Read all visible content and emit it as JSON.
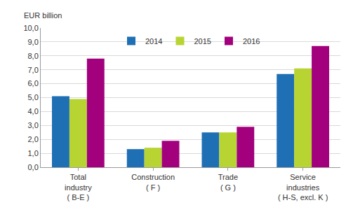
{
  "chart_data": {
    "type": "bar",
    "y_label": "EUR billion",
    "categories": [
      "Total\nindustry\n( B-E )",
      "Construction\n( F )",
      "Trade\n( G )",
      "Service\nindustries\n( H-S, excl. K )"
    ],
    "series": [
      {
        "name": "2014",
        "color": "#1f6fb4",
        "values": [
          5.1,
          1.3,
          2.5,
          6.7
        ]
      },
      {
        "name": "2015",
        "color": "#b8d432",
        "values": [
          4.9,
          1.4,
          2.5,
          7.1
        ]
      },
      {
        "name": "2016",
        "color": "#a3007d",
        "values": [
          7.8,
          1.9,
          2.9,
          8.7
        ]
      }
    ],
    "ylim": [
      0,
      10
    ],
    "yticks": [
      {
        "value": 0,
        "label": "0,0"
      },
      {
        "value": 1,
        "label": "1,0"
      },
      {
        "value": 2,
        "label": "2,0"
      },
      {
        "value": 3,
        "label": "3,0"
      },
      {
        "value": 4,
        "label": "4,0"
      },
      {
        "value": 5,
        "label": "5,0"
      },
      {
        "value": 6,
        "label": "6,0"
      },
      {
        "value": 7,
        "label": "7,0"
      },
      {
        "value": 8,
        "label": "8,0"
      },
      {
        "value": 9,
        "label": "9,0"
      },
      {
        "value": 10,
        "label": "10,0"
      }
    ],
    "grid": true,
    "legend": "top"
  }
}
